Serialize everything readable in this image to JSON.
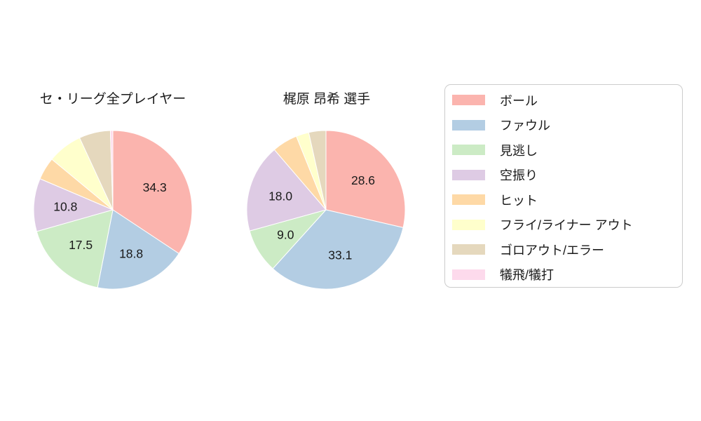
{
  "figure": {
    "background_color": "#ffffff",
    "text_color": "#1a1a1a",
    "legend_border_color": "#cccccc"
  },
  "legend": {
    "items": [
      {
        "label": "ボール",
        "color": "#fbb4ae"
      },
      {
        "label": "ファウル",
        "color": "#b3cde3"
      },
      {
        "label": "見逃し",
        "color": "#ccebc5"
      },
      {
        "label": "空振り",
        "color": "#decbe4"
      },
      {
        "label": "ヒット",
        "color": "#fed9a6"
      },
      {
        "label": "フライ/ライナー アウト",
        "color": "#ffffcc"
      },
      {
        "label": "ゴロアウト/エラー",
        "color": "#e5d8bd"
      },
      {
        "label": "犠飛/犠打",
        "color": "#fddaec"
      }
    ]
  },
  "chart_data": [
    {
      "type": "pie",
      "title": "セ・リーグ全プレイヤー",
      "categories": [
        "ボール",
        "ファウル",
        "見逃し",
        "空振り",
        "ヒット",
        "フライ/ライナー アウト",
        "ゴロアウト/エラー",
        "犠飛/犠打"
      ],
      "values": [
        34.3,
        18.8,
        17.5,
        10.8,
        4.6,
        7.1,
        6.4,
        0.5
      ],
      "colors": [
        "#fbb4ae",
        "#b3cde3",
        "#ccebc5",
        "#decbe4",
        "#fed9a6",
        "#ffffcc",
        "#e5d8bd",
        "#fddaec"
      ],
      "visible_data_labels": [
        "34.3",
        "18.8",
        "17.5",
        "10.8"
      ],
      "start_angle_deg": 0,
      "direction": "clockwise-from-top",
      "label_min_value": 8,
      "label_distance": 0.6
    },
    {
      "type": "pie",
      "title": "梶原 昂希  選手",
      "categories": [
        "ボール",
        "ファウル",
        "見逃し",
        "空振り",
        "ヒット",
        "フライ/ライナー アウト",
        "ゴロアウト/エラー",
        "犠飛/犠打"
      ],
      "values": [
        28.6,
        33.1,
        9.0,
        18.0,
        5.2,
        2.6,
        3.5,
        0.0
      ],
      "colors": [
        "#fbb4ae",
        "#b3cde3",
        "#ccebc5",
        "#decbe4",
        "#fed9a6",
        "#ffffcc",
        "#e5d8bd",
        "#fddaec"
      ],
      "visible_data_labels": [
        "28.6",
        "33.1",
        "9.0",
        "18.0"
      ],
      "start_angle_deg": 0,
      "direction": "clockwise-from-top",
      "label_min_value": 8,
      "label_distance": 0.6
    }
  ]
}
